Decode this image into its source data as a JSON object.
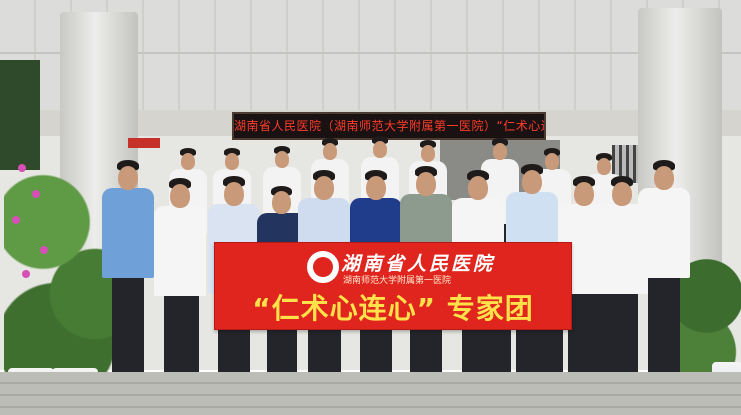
{
  "led_sign": {
    "text": "湖南省人民医院（湖南师范大学附属第一医院）“仁术心连心”"
  },
  "banner": {
    "org_name": "湖南省人民医院",
    "org_subtitle": "湖南师范大学附属第一医院",
    "slogan": "“仁术心连心” 专家团"
  },
  "colors": {
    "banner_red": "#e0251e",
    "slogan_yellow": "#ffe14a",
    "led_red": "#ff3b2a"
  },
  "icons": [
    "hospital-logo-icon"
  ]
}
